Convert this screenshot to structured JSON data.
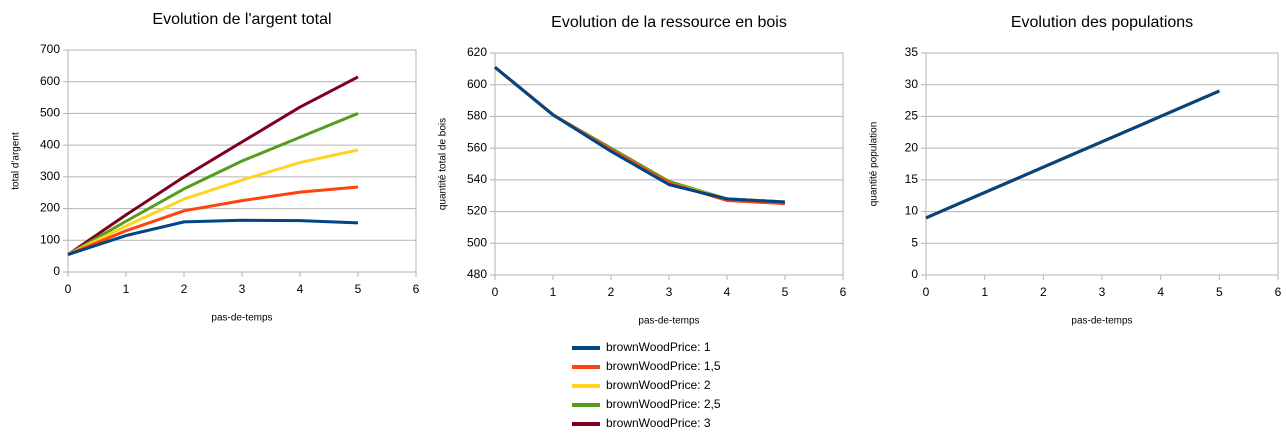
{
  "chart_data": [
    {
      "type": "line",
      "title": "Evolution de l'argent total",
      "xlabel": "pas-de-temps",
      "ylabel": "total d'argent",
      "x": [
        0,
        1,
        2,
        3,
        4,
        5
      ],
      "xlim": [
        0,
        6
      ],
      "xticks": [
        0,
        1,
        2,
        3,
        4,
        5,
        6
      ],
      "ylim": [
        0,
        700
      ],
      "yticks": [
        0,
        100,
        200,
        300,
        400,
        500,
        600,
        700
      ],
      "grid": true,
      "series": [
        {
          "values": [
            55,
            115,
            158,
            163,
            162,
            155
          ]
        },
        {
          "values": [
            55,
            130,
            193,
            225,
            252,
            268
          ]
        },
        {
          "values": [
            55,
            145,
            230,
            290,
            345,
            385
          ]
        },
        {
          "values": [
            55,
            160,
            262,
            350,
            425,
            500
          ]
        },
        {
          "values": [
            55,
            180,
            300,
            410,
            520,
            615
          ]
        }
      ]
    },
    {
      "type": "line",
      "title": "Evolution de la ressource en bois",
      "xlabel": "pas-de-temps",
      "ylabel": "quantité total de bois",
      "x": [
        0,
        1,
        2,
        3,
        4,
        5
      ],
      "xlim": [
        0,
        6
      ],
      "xticks": [
        0,
        1,
        2,
        3,
        4,
        5,
        6
      ],
      "ylim": [
        480,
        620
      ],
      "yticks": [
        480,
        500,
        520,
        540,
        560,
        580,
        600,
        620
      ],
      "grid": true,
      "series": [
        {
          "values": [
            611,
            581,
            558,
            537,
            528,
            526
          ]
        },
        {
          "values": [
            611,
            581,
            559,
            538,
            527,
            525
          ]
        },
        {
          "values": [
            611,
            581,
            559,
            538,
            528,
            526
          ]
        },
        {
          "values": [
            611,
            581,
            560,
            539,
            528,
            526
          ]
        },
        {
          "values": [
            611,
            581,
            559,
            538,
            528,
            526
          ]
        }
      ]
    },
    {
      "type": "line",
      "title": "Evolution des populations",
      "xlabel": "pas-de-temps",
      "ylabel": "quantité population",
      "x": [
        0,
        1,
        2,
        3,
        4,
        5
      ],
      "xlim": [
        0,
        6
      ],
      "xticks": [
        0,
        1,
        2,
        3,
        4,
        5,
        6
      ],
      "ylim": [
        0,
        35
      ],
      "yticks": [
        0,
        5,
        10,
        15,
        20,
        25,
        30,
        35
      ],
      "grid": true,
      "series": [
        {
          "values": [
            9,
            13,
            17,
            21,
            25,
            29
          ]
        },
        {
          "values": [
            9,
            13,
            17,
            21,
            25,
            29
          ]
        },
        {
          "values": [
            9,
            13,
            17,
            21,
            25,
            29
          ]
        },
        {
          "values": [
            9,
            13,
            17,
            21,
            25,
            29
          ]
        },
        {
          "values": [
            9,
            13,
            17,
            21,
            25,
            29
          ]
        }
      ]
    }
  ],
  "legend": [
    {
      "name": "brownWoodPrice: 1",
      "color": "#004586"
    },
    {
      "name": "brownWoodPrice: 1,5",
      "color": "#ff420e"
    },
    {
      "name": "brownWoodPrice: 2",
      "color": "#ffd320"
    },
    {
      "name": "brownWoodPrice: 2,5",
      "color": "#579d1c"
    },
    {
      "name": "brownWoodPrice: 3",
      "color": "#7e0021"
    }
  ]
}
